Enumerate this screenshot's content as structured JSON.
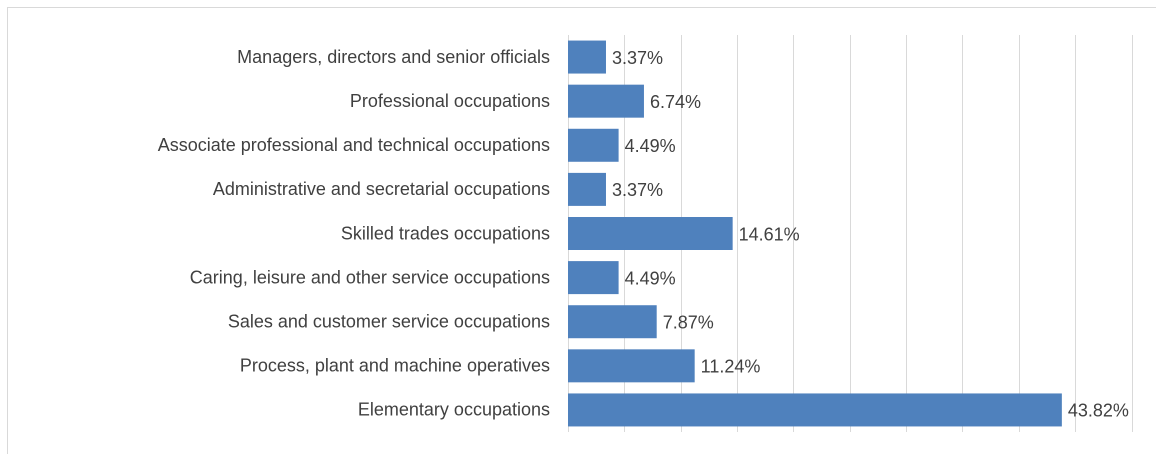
{
  "chart_data": {
    "type": "bar",
    "orientation": "horizontal",
    "categories": [
      "Managers, directors and senior officials",
      "Professional occupations",
      "Associate professional and technical occupations",
      "Administrative and secretarial occupations",
      "Skilled trades occupations",
      "Caring, leisure and other service occupations",
      "Sales and customer service occupations",
      "Process, plant and machine operatives",
      "Elementary occupations"
    ],
    "values": [
      3.37,
      6.74,
      4.49,
      3.37,
      14.61,
      4.49,
      7.87,
      11.24,
      43.82
    ],
    "value_labels": [
      "3.37%",
      "6.74%",
      "4.49%",
      "3.37%",
      "14.61%",
      "4.49%",
      "7.87%",
      "11.24%",
      "43.82%"
    ],
    "color": "#4f81bd",
    "xlim": [
      0,
      50
    ],
    "xticks": [
      0,
      5,
      10,
      15,
      20,
      25,
      30,
      35,
      40,
      45,
      50
    ],
    "grid": true
  }
}
